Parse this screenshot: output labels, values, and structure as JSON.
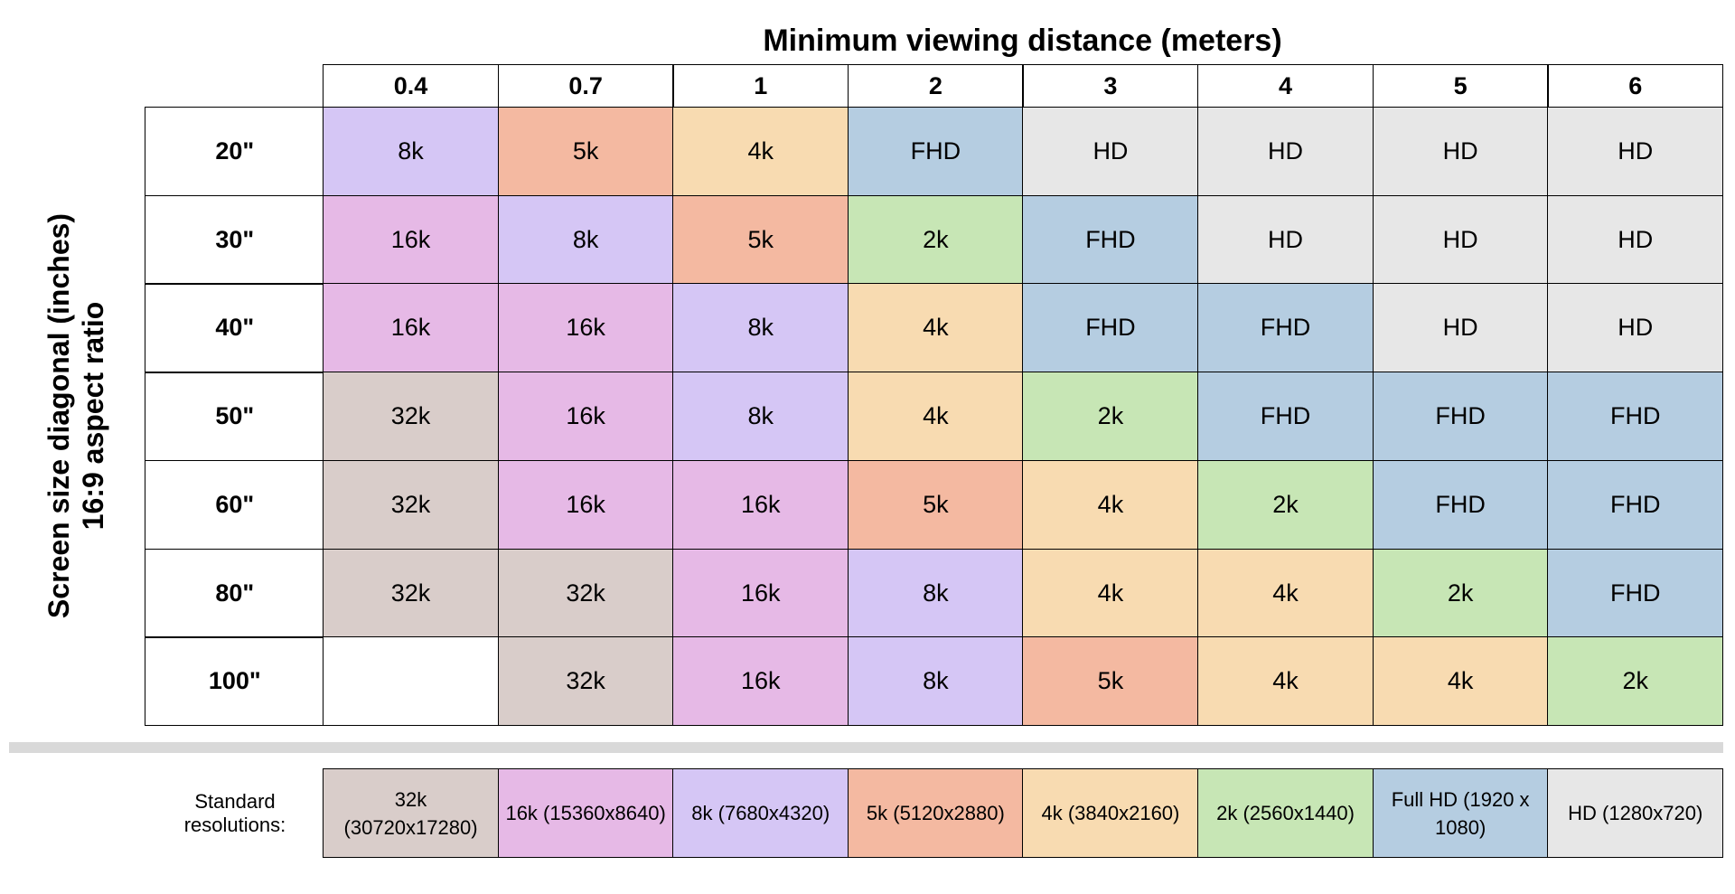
{
  "title": "Minimum viewing distance (meters)",
  "y_label": [
    "Screen size diagonal (inches)",
    "16:9 aspect ratio"
  ],
  "columns": [
    "0.4",
    "0.7",
    "1",
    "2",
    "3",
    "4",
    "5",
    "6"
  ],
  "rows": [
    {
      "label": "20\"",
      "cells": [
        "8k",
        "5k",
        "4k",
        "FHD",
        "HD",
        "HD",
        "HD",
        "HD"
      ]
    },
    {
      "label": "30\"",
      "cells": [
        "16k",
        "8k",
        "5k",
        "2k",
        "FHD",
        "HD",
        "HD",
        "HD"
      ]
    },
    {
      "label": "40\"",
      "cells": [
        "16k",
        "16k",
        "8k",
        "4k",
        "FHD",
        "FHD",
        "HD",
        "HD"
      ]
    },
    {
      "label": "50\"",
      "cells": [
        "32k",
        "16k",
        "8k",
        "4k",
        "2k",
        "FHD",
        "FHD",
        "FHD"
      ]
    },
    {
      "label": "60\"",
      "cells": [
        "32k",
        "16k",
        "16k",
        "5k",
        "4k",
        "2k",
        "FHD",
        "FHD"
      ]
    },
    {
      "label": "80\"",
      "cells": [
        "32k",
        "32k",
        "16k",
        "8k",
        "4k",
        "4k",
        "2k",
        "FHD"
      ]
    },
    {
      "label": "100\"",
      "cells": [
        null,
        "32k",
        "16k",
        "8k",
        "5k",
        "4k",
        "4k",
        "2k"
      ]
    }
  ],
  "legend": {
    "label": "Standard resolutions:",
    "items": [
      {
        "code": "32k",
        "label": "32k (30720x17280)",
        "color": "#d9cdca"
      },
      {
        "code": "16k",
        "label": "16k (15360x8640)",
        "color": "#e6b9e6"
      },
      {
        "code": "8k",
        "label": "8k (7680x4320)",
        "color": "#d5c6f5"
      },
      {
        "code": "5k",
        "label": "5k (5120x2880)",
        "color": "#f4b9a1"
      },
      {
        "code": "4k",
        "label": "4k (3840x2160)",
        "color": "#f8dbb1"
      },
      {
        "code": "2k",
        "label": "2k (2560x1440)",
        "color": "#c7e6b5"
      },
      {
        "code": "FHD",
        "label": "Full HD (1920 x 1080)",
        "color": "#b5cde1"
      },
      {
        "code": "HD",
        "label": "HD (1280x720)",
        "color": "#e7e7e7"
      }
    ]
  }
}
